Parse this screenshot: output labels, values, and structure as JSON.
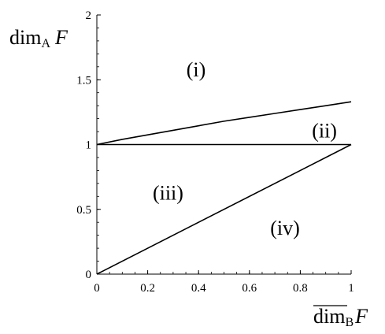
{
  "chart_data": {
    "type": "line",
    "x_range": [
      0,
      1
    ],
    "y_range": [
      0,
      2
    ],
    "x_ticks": [
      "0",
      "0.2",
      "0.4",
      "0.6",
      "0.8",
      "1"
    ],
    "y_ticks": [
      "0",
      "0.5",
      "1",
      "1.5",
      "2"
    ],
    "ylabel": {
      "main": "dim",
      "sub": "A",
      "var": "F"
    },
    "xlabel": {
      "main": "dim",
      "sub": "B",
      "var": "F"
    },
    "series": [
      {
        "x": [
          0,
          0.1,
          0.2,
          0.3,
          0.4,
          0.5,
          0.6,
          0.7,
          0.8,
          0.9,
          1.0
        ],
        "y": [
          1.0,
          1.04,
          1.075,
          1.11,
          1.145,
          1.18,
          1.21,
          1.24,
          1.27,
          1.3,
          1.33
        ]
      },
      {
        "x": [
          0,
          1
        ],
        "y": [
          1,
          1
        ]
      },
      {
        "x": [
          0,
          1
        ],
        "y": [
          0,
          1
        ]
      }
    ],
    "regions": [
      {
        "label": "(i)",
        "x": 0.39,
        "y": 1.58
      },
      {
        "label": "(ii)",
        "x": 0.895,
        "y": 1.11
      },
      {
        "label": "(iii)",
        "x": 0.28,
        "y": 0.63
      },
      {
        "label": "(iv)",
        "x": 0.74,
        "y": 0.36
      }
    ],
    "grid": false
  }
}
